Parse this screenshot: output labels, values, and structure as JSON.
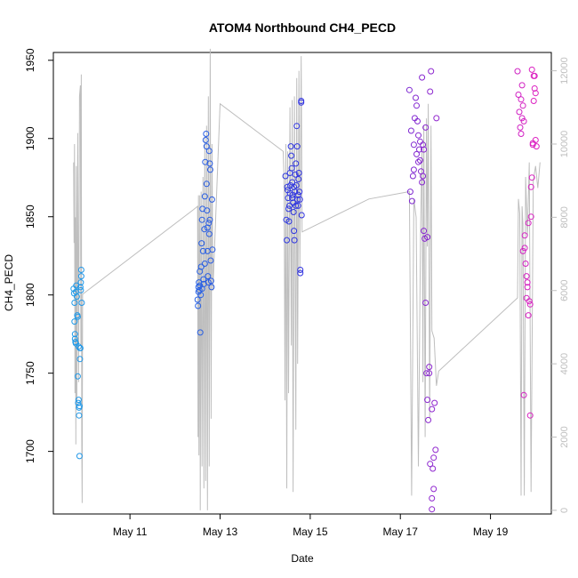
{
  "chart_data": {
    "type": "scatter",
    "title": "ATOM4 Northbound CH4_PECD",
    "xlabel": "Date",
    "ylabel": "CH4_PECD",
    "x_ticks": [
      "May 11",
      "May 13",
      "May 15",
      "May 17",
      "May 19"
    ],
    "y_ticks": [
      1700,
      1750,
      1800,
      1850,
      1900,
      1950
    ],
    "y_right_ticks": [
      0,
      2000,
      4000,
      6000,
      8000,
      10000,
      12000
    ],
    "xlim": [
      9.3,
      20.35
    ],
    "ylim": [
      1660,
      1955
    ],
    "y_right_lim": [
      -100,
      12500
    ],
    "grid": false,
    "colors": {
      "point_start": "#1e9be8",
      "point_mid": "#3030e0",
      "point_end": "#e020c0",
      "line": "#bebebe"
    },
    "series": [
      {
        "type": "points",
        "x_unit": "day of May",
        "points": [
          [
            9.75,
            1804
          ],
          [
            9.76,
            1801
          ],
          [
            9.77,
            1795
          ],
          [
            9.77,
            1783
          ],
          [
            9.78,
            1775
          ],
          [
            9.78,
            1772
          ],
          [
            9.79,
            1770
          ],
          [
            9.8,
            1769
          ],
          [
            9.8,
            1802
          ],
          [
            9.81,
            1806
          ],
          [
            9.82,
            1799
          ],
          [
            9.83,
            1787
          ],
          [
            9.84,
            1786
          ],
          [
            9.84,
            1748
          ],
          [
            9.85,
            1731
          ],
          [
            9.86,
            1733
          ],
          [
            9.86,
            1767
          ],
          [
            9.87,
            1728
          ],
          [
            9.87,
            1723
          ],
          [
            9.88,
            1729
          ],
          [
            9.88,
            1697
          ],
          [
            9.89,
            1766
          ],
          [
            9.89,
            1759
          ],
          [
            9.9,
            1766
          ],
          [
            9.9,
            1805
          ],
          [
            9.91,
            1808
          ],
          [
            9.91,
            1803
          ],
          [
            9.92,
            1812
          ],
          [
            9.92,
            1816
          ],
          [
            9.93,
            1795
          ],
          [
            12.5,
            1797
          ],
          [
            12.51,
            1793
          ],
          [
            12.52,
            1802
          ],
          [
            12.52,
            1805
          ],
          [
            12.53,
            1808
          ],
          [
            12.54,
            1803
          ],
          [
            12.55,
            1815
          ],
          [
            12.56,
            1776
          ],
          [
            12.57,
            1800
          ],
          [
            12.58,
            1818
          ],
          [
            12.59,
            1833
          ],
          [
            12.6,
            1848
          ],
          [
            12.61,
            1855
          ],
          [
            12.62,
            1828
          ],
          [
            12.63,
            1810
          ],
          [
            12.64,
            1807
          ],
          [
            12.65,
            1842
          ],
          [
            12.66,
            1863
          ],
          [
            12.67,
            1885
          ],
          [
            12.68,
            1899
          ],
          [
            12.69,
            1903
          ],
          [
            12.7,
            1895
          ],
          [
            12.7,
            1871
          ],
          [
            12.71,
            1854
          ],
          [
            12.72,
            1828
          ],
          [
            12.73,
            1812
          ],
          [
            12.74,
            1808
          ],
          [
            12.75,
            1846
          ],
          [
            12.76,
            1839
          ],
          [
            12.77,
            1848
          ],
          [
            12.77,
            1884
          ],
          [
            12.78,
            1880
          ],
          [
            12.79,
            1822
          ],
          [
            12.8,
            1809
          ],
          [
            12.81,
            1805
          ],
          [
            12.82,
            1861
          ],
          [
            12.83,
            1829
          ],
          [
            12.55,
            1806
          ],
          [
            12.6,
            1804
          ],
          [
            12.66,
            1820
          ],
          [
            12.72,
            1843
          ],
          [
            12.76,
            1892
          ],
          [
            14.45,
            1876
          ],
          [
            14.47,
            1848
          ],
          [
            14.48,
            1835
          ],
          [
            14.49,
            1869
          ],
          [
            14.5,
            1867
          ],
          [
            14.51,
            1862
          ],
          [
            14.52,
            1855
          ],
          [
            14.53,
            1847
          ],
          [
            14.54,
            1857
          ],
          [
            14.55,
            1865
          ],
          [
            14.56,
            1870
          ],
          [
            14.57,
            1895
          ],
          [
            14.58,
            1889
          ],
          [
            14.59,
            1881
          ],
          [
            14.6,
            1872
          ],
          [
            14.61,
            1864
          ],
          [
            14.62,
            1859
          ],
          [
            14.63,
            1853
          ],
          [
            14.64,
            1841
          ],
          [
            14.65,
            1835
          ],
          [
            14.66,
            1866
          ],
          [
            14.67,
            1877
          ],
          [
            14.68,
            1884
          ],
          [
            14.69,
            1870
          ],
          [
            14.7,
            1908
          ],
          [
            14.71,
            1895
          ],
          [
            14.72,
            1861
          ],
          [
            14.73,
            1857
          ],
          [
            14.74,
            1874
          ],
          [
            14.75,
            1878
          ],
          [
            14.76,
            1866
          ],
          [
            14.77,
            1861
          ],
          [
            14.78,
            1816
          ],
          [
            14.78,
            1814
          ],
          [
            14.8,
            1924
          ],
          [
            14.8,
            1923
          ],
          [
            14.81,
            1851
          ],
          [
            14.55,
            1878
          ],
          [
            14.6,
            1862
          ],
          [
            14.64,
            1869
          ],
          [
            14.68,
            1857
          ],
          [
            14.73,
            1864
          ],
          [
            17.2,
            1931
          ],
          [
            17.22,
            1866
          ],
          [
            17.24,
            1905
          ],
          [
            17.26,
            1860
          ],
          [
            17.28,
            1876
          ],
          [
            17.3,
            1896
          ],
          [
            17.32,
            1913
          ],
          [
            17.34,
            1926
          ],
          [
            17.36,
            1921
          ],
          [
            17.38,
            1911
          ],
          [
            17.4,
            1902
          ],
          [
            17.42,
            1893
          ],
          [
            17.44,
            1886
          ],
          [
            17.46,
            1879
          ],
          [
            17.48,
            1872
          ],
          [
            17.5,
            1896
          ],
          [
            17.52,
            1841
          ],
          [
            17.54,
            1836
          ],
          [
            17.56,
            1795
          ],
          [
            17.58,
            1750
          ],
          [
            17.6,
            1733
          ],
          [
            17.62,
            1720
          ],
          [
            17.64,
            1754
          ],
          [
            17.66,
            1930
          ],
          [
            17.68,
            1943
          ],
          [
            17.7,
            1663
          ],
          [
            17.72,
            1689
          ],
          [
            17.74,
            1696
          ],
          [
            17.76,
            1731
          ],
          [
            17.78,
            1701
          ],
          [
            17.8,
            1913
          ],
          [
            17.48,
            1939
          ],
          [
            17.52,
            1893
          ],
          [
            17.56,
            1907
          ],
          [
            17.6,
            1837
          ],
          [
            17.66,
            1692
          ],
          [
            17.7,
            1670
          ],
          [
            17.74,
            1676
          ],
          [
            17.4,
            1885
          ],
          [
            17.3,
            1880
          ],
          [
            17.36,
            1890
          ],
          [
            17.44,
            1898
          ],
          [
            17.5,
            1876
          ],
          [
            17.64,
            1750
          ],
          [
            17.7,
            1727
          ],
          [
            19.6,
            1943
          ],
          [
            19.62,
            1928
          ],
          [
            19.64,
            1917
          ],
          [
            19.66,
            1907
          ],
          [
            19.68,
            1903
          ],
          [
            19.7,
            1934
          ],
          [
            19.72,
            1921
          ],
          [
            19.74,
            1911
          ],
          [
            19.76,
            1830
          ],
          [
            19.78,
            1820
          ],
          [
            19.8,
            1798
          ],
          [
            19.82,
            1808
          ],
          [
            19.84,
            1787
          ],
          [
            19.86,
            1796
          ],
          [
            19.88,
            1794
          ],
          [
            19.9,
            1869
          ],
          [
            19.92,
            1875
          ],
          [
            19.94,
            1896
          ],
          [
            19.96,
            1940
          ],
          [
            19.98,
            1932
          ],
          [
            20.0,
            1899
          ],
          [
            20.02,
            1895
          ],
          [
            19.68,
            1925
          ],
          [
            19.72,
            1828
          ],
          [
            19.76,
            1838
          ],
          [
            19.8,
            1812
          ],
          [
            19.84,
            1846
          ],
          [
            19.88,
            1723
          ],
          [
            19.92,
            1944
          ],
          [
            19.96,
            1924
          ],
          [
            20.0,
            1929
          ],
          [
            19.74,
            1736
          ],
          [
            19.82,
            1805
          ],
          [
            19.9,
            1850
          ],
          [
            19.94,
            1897
          ],
          [
            19.98,
            1940
          ],
          [
            19.7,
            1913
          ]
        ]
      },
      {
        "type": "line",
        "axis": "right",
        "x_unit": "day of May",
        "points": [
          [
            9.75,
            9500
          ],
          [
            9.76,
            7300
          ],
          [
            9.77,
            10000
          ],
          [
            9.78,
            3200
          ],
          [
            9.79,
            8000
          ],
          [
            9.8,
            1800
          ],
          [
            9.81,
            9400
          ],
          [
            9.82,
            2800
          ],
          [
            9.84,
            10300
          ],
          [
            9.86,
            3500
          ],
          [
            9.88,
            11300
          ],
          [
            9.9,
            11600
          ],
          [
            9.91,
            4500
          ],
          [
            9.92,
            11900
          ],
          [
            9.93,
            2000
          ],
          [
            9.94,
            200
          ],
          [
            9.95,
            5900
          ],
          [
            12.4,
            8200
          ],
          [
            12.5,
            8300
          ],
          [
            12.51,
            2000
          ],
          [
            12.52,
            8600
          ],
          [
            12.53,
            1500
          ],
          [
            12.55,
            8600
          ],
          [
            12.56,
            0
          ],
          [
            12.58,
            8700
          ],
          [
            12.6,
            1200
          ],
          [
            12.62,
            9100
          ],
          [
            12.64,
            600
          ],
          [
            12.66,
            10200
          ],
          [
            12.68,
            800
          ],
          [
            12.7,
            10500
          ],
          [
            12.72,
            0
          ],
          [
            12.74,
            11300
          ],
          [
            12.76,
            1200
          ],
          [
            12.78,
            12600
          ],
          [
            12.8,
            2500
          ],
          [
            12.82,
            10000
          ],
          [
            12.84,
            6000
          ],
          [
            13.0,
            11100
          ],
          [
            14.4,
            9800
          ],
          [
            14.42,
            9000
          ],
          [
            14.44,
            3000
          ],
          [
            14.46,
            10000
          ],
          [
            14.48,
            600
          ],
          [
            14.5,
            9800
          ],
          [
            14.52,
            3200
          ],
          [
            14.55,
            11000
          ],
          [
            14.58,
            4500
          ],
          [
            14.6,
            11200
          ],
          [
            14.62,
            500
          ],
          [
            14.65,
            11300
          ],
          [
            14.68,
            2200
          ],
          [
            14.7,
            11800
          ],
          [
            14.72,
            4000
          ],
          [
            14.75,
            12000
          ],
          [
            14.77,
            6500
          ],
          [
            14.8,
            12400
          ],
          [
            14.82,
            7600
          ],
          [
            16.3,
            8500
          ],
          [
            17.2,
            8700
          ],
          [
            17.25,
            400
          ],
          [
            17.3,
            8500
          ],
          [
            17.35,
            8000
          ],
          [
            17.4,
            1200
          ],
          [
            17.45,
            7700
          ],
          [
            17.48,
            9900
          ],
          [
            17.5,
            3500
          ],
          [
            17.52,
            10500
          ],
          [
            17.55,
            2000
          ],
          [
            17.58,
            10700
          ],
          [
            17.6,
            7200
          ],
          [
            17.62,
            11100
          ],
          [
            17.65,
            2500
          ],
          [
            17.68,
            10500
          ],
          [
            17.7,
            4900
          ],
          [
            17.75,
            4700
          ],
          [
            17.8,
            3400
          ],
          [
            17.85,
            3800
          ],
          [
            19.6,
            5800
          ],
          [
            19.62,
            8500
          ],
          [
            19.65,
            8100
          ],
          [
            19.68,
            400
          ],
          [
            19.7,
            8300
          ],
          [
            19.72,
            7800
          ],
          [
            19.75,
            400
          ],
          [
            19.78,
            9100
          ],
          [
            19.82,
            7500
          ],
          [
            19.86,
            9500
          ],
          [
            19.9,
            500
          ],
          [
            19.95,
            9000
          ],
          [
            20.0,
            9400
          ],
          [
            20.05,
            8800
          ],
          [
            20.1,
            9500
          ]
        ]
      }
    ]
  }
}
